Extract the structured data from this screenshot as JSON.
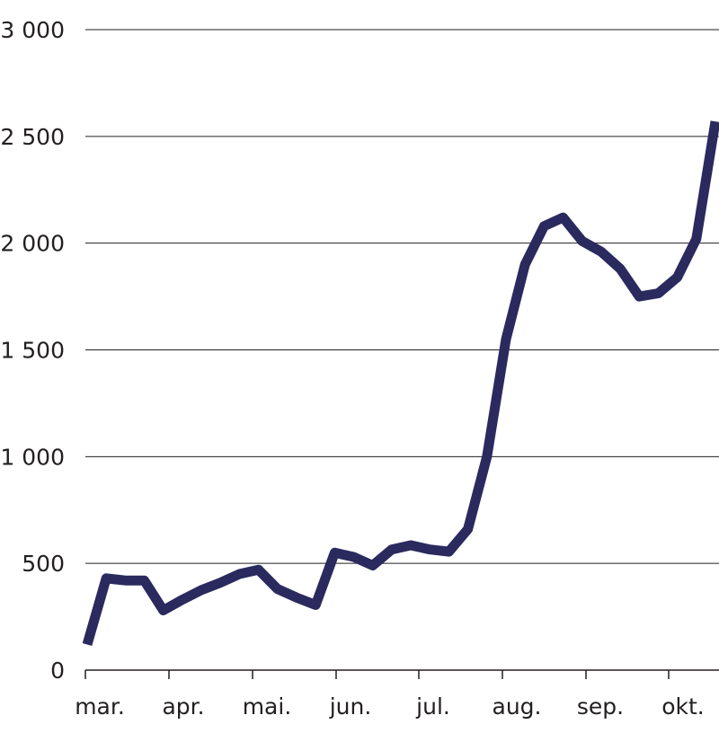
{
  "chart_data": {
    "type": "line",
    "title": "",
    "xlabel": "",
    "ylabel": "",
    "ylim": [
      0,
      3000
    ],
    "y_ticks": [
      {
        "value": 0,
        "label": "0"
      },
      {
        "value": 500,
        "label": "500"
      },
      {
        "value": 1000,
        "label": "1 000"
      },
      {
        "value": 1500,
        "label": "1 500"
      },
      {
        "value": 2000,
        "label": "2 000"
      },
      {
        "value": 2500,
        "label": "2 500"
      },
      {
        "value": 3000,
        "label": "3 000"
      }
    ],
    "x_ticks": [
      "mar.",
      "apr.",
      "mai.",
      "jun.",
      "jul.",
      "aug.",
      "sep.",
      "okt."
    ],
    "grid": true,
    "line_color": "#2b2a5e",
    "series": [
      {
        "values": [
          120,
          430,
          420,
          420,
          280,
          330,
          375,
          410,
          450,
          470,
          380,
          340,
          305,
          550,
          530,
          490,
          565,
          585,
          565,
          555,
          660,
          1000,
          1550,
          1900,
          2080,
          2120,
          2010,
          1960,
          1880,
          1750,
          1765,
          1840,
          2020,
          2570
        ]
      }
    ]
  }
}
